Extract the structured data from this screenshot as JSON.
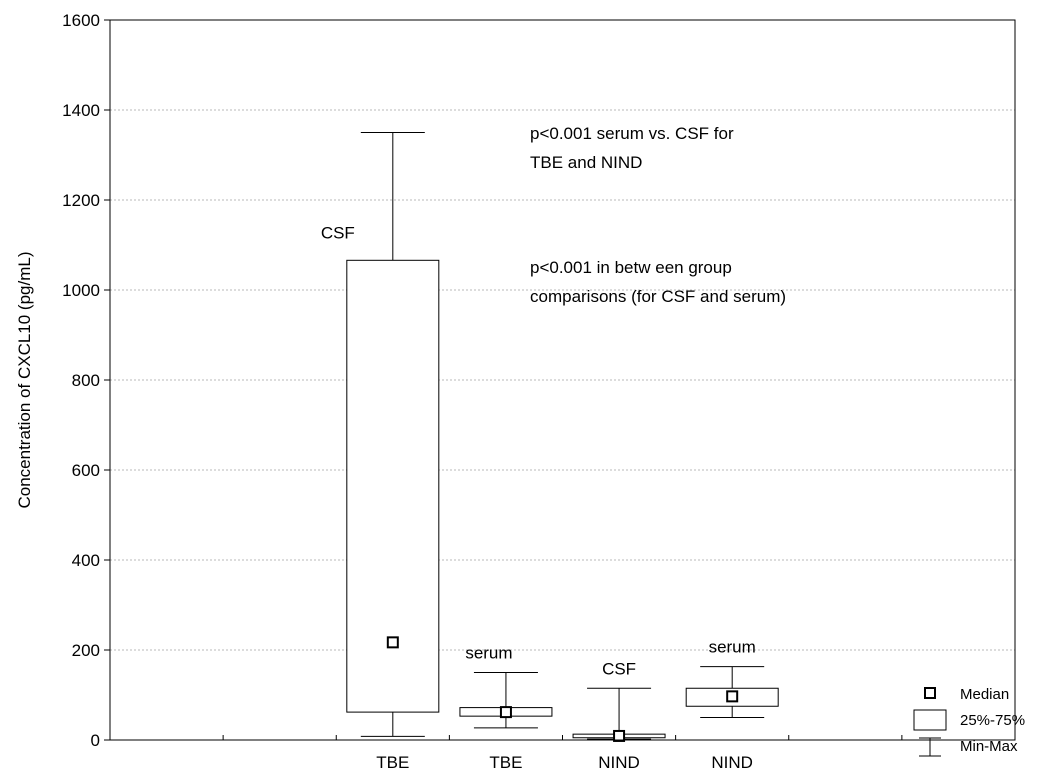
{
  "chart_data": {
    "type": "box",
    "title": "",
    "xlabel": "",
    "ylabel": "Concentration of CXCL10 (pg/mL)",
    "ylim": [
      0,
      1600
    ],
    "yticks": [
      0,
      200,
      400,
      600,
      800,
      1000,
      1200,
      1400,
      1600
    ],
    "grid": true,
    "categories": [
      "TBE",
      "TBE",
      "NIND",
      "NIND"
    ],
    "boxes": [
      {
        "category": "TBE",
        "label": "CSF",
        "min": 8,
        "q1": 62,
        "median": 217,
        "q3": 1066,
        "max": 1350
      },
      {
        "category": "TBE",
        "label": "serum",
        "min": 27,
        "q1": 53,
        "median": 62,
        "q3": 72,
        "max": 150
      },
      {
        "category": "NIND",
        "label": "CSF",
        "min": 2,
        "q1": 5,
        "median": 9,
        "q3": 13,
        "max": 115
      },
      {
        "category": "NIND",
        "label": "serum",
        "min": 50,
        "q1": 75,
        "median": 97,
        "q3": 115,
        "max": 163
      }
    ],
    "annotations": [
      "p<0.001 serum vs. CSF for",
      "TBE and NIND",
      "p<0.001 in betw een group",
      "comparisons (for CSF and serum)"
    ],
    "legend": {
      "position": "bottom-right",
      "entries": [
        "Median",
        "25%-75%",
        "Min-Max"
      ]
    }
  }
}
